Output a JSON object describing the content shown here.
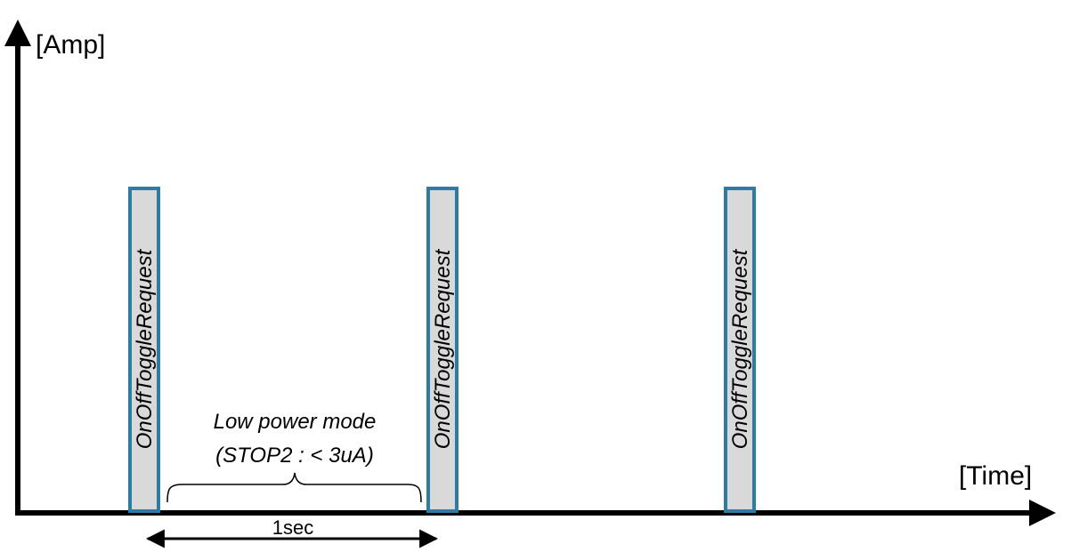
{
  "axes": {
    "y_label": "[Amp]",
    "x_label": "[Time]"
  },
  "pulses": [
    {
      "label": "OnOffToggleRequest"
    },
    {
      "label": "OnOffToggleRequest"
    },
    {
      "label": "OnOffToggleRequest"
    }
  ],
  "low_power": {
    "line1": "Low power mode",
    "line2": "(STOP2 : < 3uA)"
  },
  "interval": {
    "label": "1sec"
  },
  "colors": {
    "pulse_fill": "#d9d9d9",
    "pulse_stroke": "#2e7ca3",
    "axis": "#000000"
  }
}
